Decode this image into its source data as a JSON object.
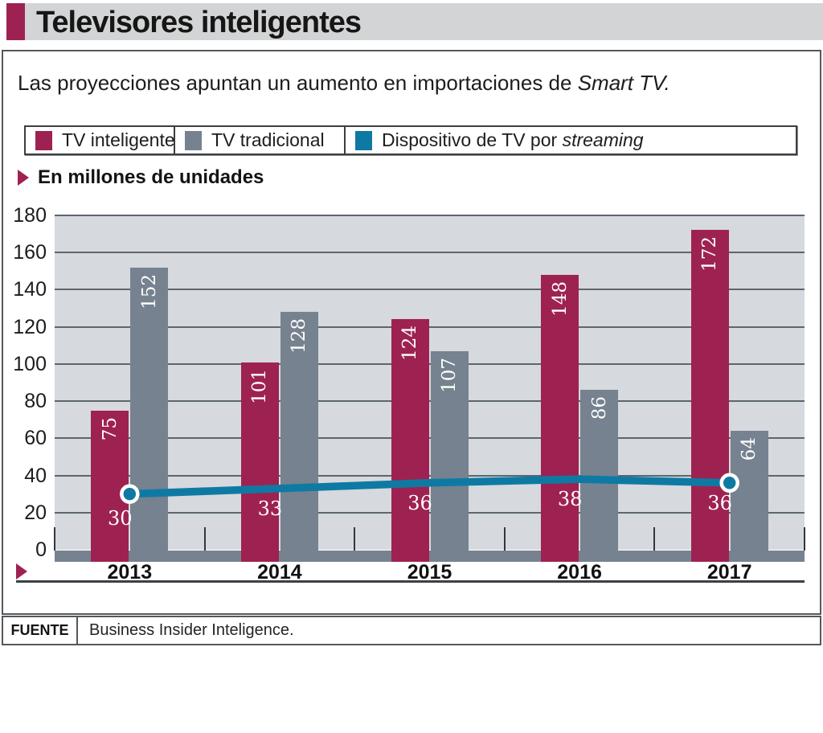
{
  "header": {
    "title": "Televisores inteligentes"
  },
  "subtitle": {
    "text": "Las proyecciones apuntan un aumento en importaciones de ",
    "emphasis": "Smart TV."
  },
  "legend": [
    {
      "label": "TV inteligente",
      "color": "#9E2251"
    },
    {
      "label": "TV tradicional",
      "color": "#76828F"
    },
    {
      "label_prefix": "Dispositivo de TV por ",
      "label_emphasis": "streaming",
      "color": "#0E7AA3"
    }
  ],
  "units_label": "En millones de unidades",
  "chart_data": {
    "type": "bar",
    "categories": [
      "2013",
      "2014",
      "2015",
      "2016",
      "2017"
    ],
    "series": [
      {
        "name": "TV inteligente",
        "type": "bar",
        "color": "#9E2251",
        "values": [
          75,
          101,
          124,
          148,
          172
        ]
      },
      {
        "name": "TV tradicional",
        "type": "bar",
        "color": "#76828F",
        "values": [
          152,
          128,
          107,
          86,
          64
        ]
      },
      {
        "name": "Dispositivo de TV por streaming",
        "type": "line",
        "color": "#0E7AA3",
        "values": [
          30,
          33,
          36,
          38,
          36
        ]
      }
    ],
    "title": "Televisores inteligentes",
    "xlabel": "",
    "ylabel": "En millones de unidades",
    "ylim": [
      0,
      180
    ],
    "yticks": [
      0,
      20,
      40,
      60,
      80,
      100,
      120,
      140,
      160,
      180
    ],
    "grid": true,
    "legend_position": "top",
    "colors": {
      "plot_background": "#D6D9DD",
      "gridline": "#5C6670",
      "axis_band": "#76828F",
      "value_label": "#FFFFFF"
    }
  },
  "source": {
    "label": "FUENTE",
    "text": "Business Insider Inteligence."
  }
}
